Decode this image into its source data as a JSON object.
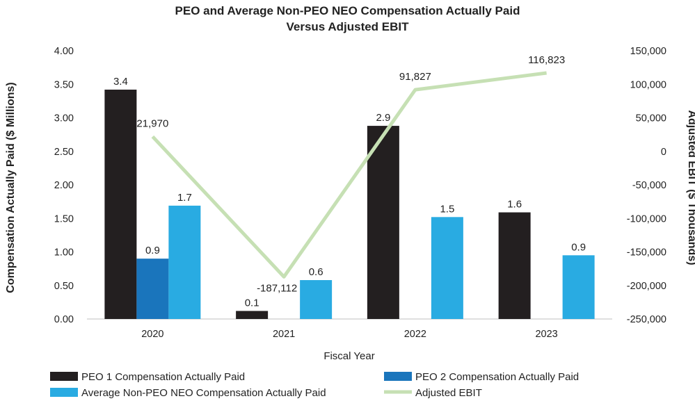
{
  "chart_data": {
    "type": "bar",
    "title": [
      "PEO and Average Non-PEO NEO Compensation Actually Paid",
      "Versus Adjusted EBIT"
    ],
    "xlabel": "Fiscal Year",
    "ylabel": "Compensation Actually Paid ($ Millions)",
    "y2label": "Adjusted EBIT ($ Thousands)",
    "categories": [
      "2020",
      "2021",
      "2022",
      "2023"
    ],
    "ylim": [
      0,
      4
    ],
    "yticks": [
      "0.00",
      "0.50",
      "1.00",
      "1.50",
      "2.00",
      "2.50",
      "3.00",
      "3.50",
      "4.00"
    ],
    "y2lim": [
      -250000,
      150000
    ],
    "y2ticks": [
      "-250,000",
      "-200,000",
      "-150,000",
      "-100,000",
      "-50,000",
      "0",
      "50,000",
      "100,000",
      "150,000"
    ],
    "series": [
      {
        "name": "PEO 1 Compensation Actually Paid",
        "color": "#231f20",
        "type": "bar",
        "values": [
          3.42,
          0.12,
          2.88,
          1.59
        ],
        "labels": [
          "3.4",
          "0.1",
          "2.9",
          "1.6"
        ]
      },
      {
        "name": "PEO 2 Compensation Actually Paid",
        "color": "#1a75bc",
        "type": "bar",
        "values": [
          0.9,
          null,
          null,
          null
        ],
        "labels": [
          "0.9",
          "",
          "",
          ""
        ]
      },
      {
        "name": "Average Non-PEO NEO Compensation Actually Paid",
        "color": "#29abe2",
        "type": "bar",
        "values": [
          1.69,
          0.58,
          1.52,
          0.95
        ],
        "labels": [
          "1.7",
          "0.6",
          "1.5",
          "0.9"
        ]
      },
      {
        "name": "Adjusted EBIT",
        "color": "#c6e0b4",
        "type": "line",
        "axis": "right",
        "values": [
          21970,
          -187112,
          91827,
          116823
        ],
        "labels": [
          "21,970",
          "-187,112",
          "91,827",
          "116,823"
        ]
      }
    ],
    "legend": [
      "PEO 1 Compensation Actually Paid",
      "PEO 2 Compensation Actually Paid",
      "Average Non-PEO NEO Compensation Actually Paid",
      "Adjusted EBIT"
    ],
    "legend_position": "bottom"
  }
}
